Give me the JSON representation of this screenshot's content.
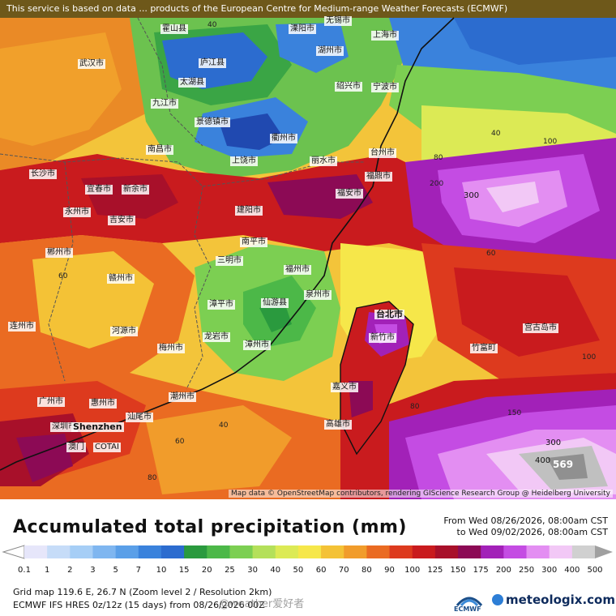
{
  "banner": "This service is based on data ... products of the European Centre for Medium-range Weather Forecasts (ECMWF)",
  "map_credit": "Map data © OpenStreetMap contributors, rendering GIScience Research Group @ Heidelberg University",
  "title": "Accumulated total precipitation (mm)",
  "period_from": "From Wed 08/26/2026, 08:00am CST",
  "period_to": "to Wed 09/02/2026, 08:00am CST",
  "colorbar": {
    "ticks": [
      "0.1",
      "1",
      "2",
      "3",
      "5",
      "7",
      "10",
      "15",
      "20",
      "25",
      "30",
      "40",
      "50",
      "60",
      "70",
      "80",
      "90",
      "100",
      "125",
      "150",
      "175",
      "200",
      "250",
      "300",
      "400",
      "500"
    ],
    "colors": [
      "#e6e6fa",
      "#c6dcf8",
      "#a6cef6",
      "#7fb6f0",
      "#5a9fe8",
      "#3a82dc",
      "#2c6ccf",
      "#2a9a3e",
      "#4cb848",
      "#7ccf52",
      "#b4e05a",
      "#dcea55",
      "#f6e74a",
      "#f4c236",
      "#f19c2b",
      "#ea6b22",
      "#dd3a1e",
      "#c91b1e",
      "#a8102a",
      "#8c0a55",
      "#a221b8",
      "#c44ce3",
      "#e38ef2",
      "#f2c8f6",
      "#d0d0d0",
      "#a0a0a0"
    ]
  },
  "cities": [
    {
      "name": "霍山县"
    },
    {
      "name": "庐江县"
    },
    {
      "name": "溧阳市"
    },
    {
      "name": "无锡市"
    },
    {
      "name": "湖州市"
    },
    {
      "name": "上海市"
    },
    {
      "name": "武汉市"
    },
    {
      "name": "太湖县"
    },
    {
      "name": "九江市"
    },
    {
      "name": "景德镇市"
    },
    {
      "name": "衢州市"
    },
    {
      "name": "绍兴市"
    },
    {
      "name": "宁波市"
    },
    {
      "name": "南昌市"
    },
    {
      "name": "上饶市"
    },
    {
      "name": "丽水市"
    },
    {
      "name": "台州市"
    },
    {
      "name": "长沙市"
    },
    {
      "name": "宜春市"
    },
    {
      "name": "新余市"
    },
    {
      "name": "建阳市"
    },
    {
      "name": "福安市"
    },
    {
      "name": "福鼎市"
    },
    {
      "name": "吉安市"
    },
    {
      "name": "南平市"
    },
    {
      "name": "三明市"
    },
    {
      "name": "福州市"
    },
    {
      "name": "赣州市"
    },
    {
      "name": "漳平市"
    },
    {
      "name": "仙游县"
    },
    {
      "name": "泉州市"
    },
    {
      "name": "台北市"
    },
    {
      "name": "新竹市"
    },
    {
      "name": "宫古岛市"
    },
    {
      "name": "竹富町"
    },
    {
      "name": "梅州市"
    },
    {
      "name": "潮州市"
    },
    {
      "name": "嘉义市"
    },
    {
      "name": "高雄市"
    },
    {
      "name": "广州市"
    },
    {
      "name": "惠州市"
    },
    {
      "name": "汕尾市"
    },
    {
      "name": "深圳市"
    },
    {
      "name": "Shenzhen"
    },
    {
      "name": "COTAI"
    },
    {
      "name": "澳门"
    },
    {
      "name": "河源市"
    },
    {
      "name": "连州市"
    },
    {
      "name": "郴州市"
    },
    {
      "name": "永州市"
    },
    {
      "name": "龙岩市"
    },
    {
      "name": "漳州市"
    }
  ],
  "contour_labels": [
    "40",
    "60",
    "80",
    "100",
    "150",
    "200",
    "300",
    "400",
    "569"
  ],
  "footer": {
    "line1": "Grid map 119.6 E, 26.7 N (Zoom level 2 / Resolution 2km)",
    "line2": "ECMWF IFS HRES 0z/12z (15 days) from 08/26/2026 00Z"
  },
  "watermark": "@weather爱好者",
  "logos": {
    "ecmwf": "ECMWF",
    "meteologix": "meteologix.com"
  }
}
